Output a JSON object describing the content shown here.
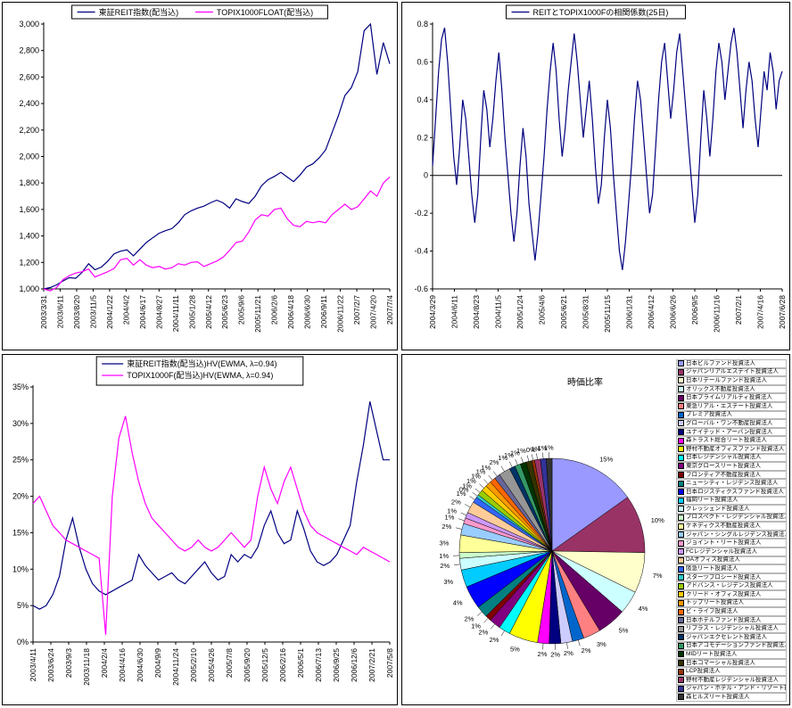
{
  "chart_data": [
    {
      "id": "price-index",
      "type": "line",
      "legend_layout": "row",
      "ylim": [
        1000,
        3000
      ],
      "yticks": {
        "min": 1000,
        "max": 3000,
        "step": 200,
        "labels": [
          "1,000",
          "1,200",
          "1,400",
          "1,600",
          "1,800",
          "2,000",
          "2,200",
          "2,400",
          "2,600",
          "2,800",
          "3,000"
        ]
      },
      "x_labels": [
        "2003/3/31",
        "2003/6/11",
        "2003/8/20",
        "2003/11/5",
        "2004/1/22",
        "2004/4/2",
        "2004/6/17",
        "2004/8/27",
        "2004/11/11",
        "2005/1/28",
        "2005/4/12",
        "2005/6/23",
        "2005/9/6",
        "2005/11/21",
        "2006/2/6",
        "2006/4/18",
        "2006/6/30",
        "2006/9/11",
        "2006/11/22",
        "2007/2/7",
        "2007/4/20",
        "2007/7/4"
      ],
      "series": [
        {
          "name": "東証REIT指数(配当込)",
          "color": "#000080",
          "values": [
            1000,
            1010,
            1030,
            1060,
            1085,
            1080,
            1125,
            1190,
            1145,
            1165,
            1210,
            1265,
            1285,
            1295,
            1250,
            1300,
            1350,
            1385,
            1420,
            1440,
            1455,
            1500,
            1560,
            1590,
            1610,
            1625,
            1650,
            1670,
            1650,
            1610,
            1680,
            1660,
            1645,
            1700,
            1780,
            1825,
            1850,
            1880,
            1845,
            1810,
            1860,
            1920,
            1945,
            1990,
            2050,
            2180,
            2310,
            2460,
            2520,
            2640,
            2950,
            3000,
            2620,
            2860,
            2700
          ]
        },
        {
          "name": "TOPIX1000FLOAT(配当込)",
          "color": "#FF00FF",
          "values": [
            1000,
            985,
            1010,
            1070,
            1100,
            1120,
            1130,
            1150,
            1090,
            1110,
            1130,
            1155,
            1220,
            1230,
            1180,
            1220,
            1180,
            1160,
            1170,
            1150,
            1160,
            1190,
            1180,
            1200,
            1205,
            1170,
            1190,
            1210,
            1240,
            1290,
            1350,
            1360,
            1430,
            1520,
            1560,
            1550,
            1600,
            1610,
            1530,
            1480,
            1470,
            1510,
            1500,
            1510,
            1500,
            1560,
            1600,
            1640,
            1600,
            1620,
            1680,
            1740,
            1700,
            1800,
            1845
          ]
        }
      ]
    },
    {
      "id": "correlation",
      "type": "line",
      "legend_layout": "row",
      "zero_line": true,
      "ylim": [
        -0.6,
        0.8
      ],
      "yticks": {
        "min": -0.6,
        "max": 0.8,
        "step": 0.2,
        "labels": [
          "-0.6",
          "-0.4",
          "-0.2",
          "0",
          "0.2",
          "0.4",
          "0.6",
          "0.8"
        ]
      },
      "x_labels": [
        "2004/3/29",
        "2004/6/11",
        "2004/8/23",
        "2004/11/5",
        "2005/1/24",
        "2005/4/6",
        "2005/6/21",
        "2005/8/31",
        "2005/11/15",
        "2006/1/31",
        "2006/4/12",
        "2006/6/26",
        "2006/9/5",
        "2006/11/16",
        "2007/2/1",
        "2007/4/16",
        "2007/6/28"
      ],
      "series": [
        {
          "name": "REITとTOPIX1000Fの相関係数(25日)",
          "color": "#000080",
          "values": [
            0.05,
            0.3,
            0.55,
            0.72,
            0.78,
            0.6,
            0.35,
            0.1,
            -0.05,
            0.15,
            0.4,
            0.3,
            0.1,
            -0.1,
            -0.25,
            -0.1,
            0.2,
            0.45,
            0.35,
            0.15,
            0.3,
            0.5,
            0.65,
            0.45,
            0.2,
            0,
            -0.2,
            -0.35,
            -0.2,
            0.05,
            0.25,
            0.1,
            -0.15,
            -0.3,
            -0.45,
            -0.3,
            -0.1,
            0.1,
            0.35,
            0.55,
            0.7,
            0.55,
            0.3,
            0.1,
            0.25,
            0.45,
            0.6,
            0.75,
            0.6,
            0.4,
            0.2,
            0.35,
            0.5,
            0.3,
            0.05,
            -0.15,
            -0.05,
            0.2,
            0.4,
            0.25,
            0,
            -0.2,
            -0.4,
            -0.5,
            -0.35,
            -0.15,
            0.05,
            0.3,
            0.5,
            0.4,
            0.2,
            0,
            -0.2,
            -0.1,
            0.15,
            0.4,
            0.6,
            0.7,
            0.5,
            0.3,
            0.45,
            0.65,
            0.75,
            0.55,
            0.35,
            0.15,
            -0.05,
            -0.25,
            -0.1,
            0.2,
            0.45,
            0.3,
            0.1,
            0.3,
            0.55,
            0.7,
            0.6,
            0.4,
            0.55,
            0.7,
            0.78,
            0.65,
            0.45,
            0.25,
            0.45,
            0.6,
            0.5,
            0.3,
            0.15,
            0.35,
            0.55,
            0.45,
            0.65,
            0.55,
            0.35,
            0.5,
            0.55
          ]
        }
      ]
    },
    {
      "id": "historical-volatility",
      "type": "line",
      "legend_layout": "column",
      "ylim": [
        0,
        35
      ],
      "yticks": {
        "min": 0,
        "max": 35,
        "step": 5,
        "labels": [
          "0%",
          "5%",
          "10%",
          "15%",
          "20%",
          "25%",
          "30%",
          "35%"
        ]
      },
      "x_labels": [
        "2003/4/11",
        "2003/6/24",
        "2003/9/3",
        "2003/11/18",
        "2004/2/4",
        "2004/4/16",
        "2004/6/30",
        "2004/9/9",
        "2004/11/24",
        "2005/2/10",
        "2005/4/26",
        "2005/7/8",
        "2005/9/20",
        "2005/12/5",
        "2006/2/16",
        "2006/5/1",
        "2006/7/13",
        "2006/9/25",
        "2006/12/6",
        "2007/2/21",
        "2007/5/8"
      ],
      "series": [
        {
          "name": "東証REIT指数(配当込)HV(EWMA, λ=0.94)",
          "color": "#000080",
          "values": [
            5,
            4.5,
            5,
            6.5,
            9,
            14,
            17,
            13,
            10,
            8,
            7,
            6.5,
            7,
            7.5,
            8,
            8.5,
            12,
            10.5,
            9.5,
            8.5,
            9,
            9.5,
            8.5,
            8,
            9,
            10,
            11,
            9.5,
            8.5,
            9,
            12,
            11,
            12,
            11.5,
            13,
            16,
            18,
            15,
            13.5,
            14,
            18,
            15.5,
            12.5,
            11,
            10.5,
            11,
            12,
            14,
            16,
            22,
            27,
            33,
            29,
            25,
            25
          ]
        },
        {
          "name": "TOPIX1000F(配当込)HV(EWMA, λ=0.94)",
          "color": "#FF00FF",
          "values": [
            19,
            20,
            18,
            16,
            15,
            14,
            13.5,
            13,
            12.5,
            12,
            11.5,
            1,
            20,
            28,
            31,
            26,
            22,
            19,
            17,
            16,
            15,
            14,
            13,
            12.5,
            13,
            14,
            13,
            12.5,
            13,
            14,
            15,
            14,
            13,
            14,
            20,
            24,
            21,
            19,
            22,
            24,
            21,
            18,
            16,
            15,
            14.5,
            14,
            13.5,
            13,
            12.5,
            12,
            13,
            12.5,
            12,
            11.5,
            11
          ]
        }
      ]
    },
    {
      "id": "market-cap-share",
      "type": "pie",
      "title": "時価比率",
      "slices": [
        {
          "name": "日本ビルファンド投資法人",
          "value": 15,
          "label": "15%",
          "color": "#9999FF"
        },
        {
          "name": "ジャパンリアルエステイト投資法人",
          "value": 10,
          "label": "10%",
          "color": "#993366"
        },
        {
          "name": "日本リテールファンド投資法人",
          "value": 7,
          "label": "7%",
          "color": "#FFFFCC"
        },
        {
          "name": "オリックス不動産投資法人",
          "value": 4,
          "label": "4%",
          "color": "#CCFFFF"
        },
        {
          "name": "日本プライムリアルティ投資法人",
          "value": 5,
          "label": "5%",
          "color": "#660066"
        },
        {
          "name": "東急リアル・エステート投資法人",
          "value": 3,
          "label": "3%",
          "color": "#FF8080"
        },
        {
          "name": "プレミア投資法人",
          "value": 2,
          "label": "2%",
          "color": "#0066CC"
        },
        {
          "name": "グローバル・ワン不動産投資法人",
          "value": 2,
          "label": "2%",
          "color": "#CCCCFF"
        },
        {
          "name": "ユナイテッド・アーバン投資法人",
          "value": 2,
          "label": "2%",
          "color": "#000080"
        },
        {
          "name": "森トラスト総合リート投資法人",
          "value": 2,
          "label": "2%",
          "color": "#FF00FF"
        },
        {
          "name": "野村不動産オフィスファンド投資法人",
          "value": 5,
          "label": "5%",
          "color": "#FFFF00"
        },
        {
          "name": "日本レジデンシャル投資法人",
          "value": 2,
          "label": "2%",
          "color": "#00FFFF"
        },
        {
          "name": "東京グロースリート投資法人",
          "value": 2,
          "label": "2%",
          "color": "#800080"
        },
        {
          "name": "フロンティア不動産投資法人",
          "value": 1,
          "label": "1%",
          "color": "#800000"
        },
        {
          "name": "ニューシティ・レジデンス投資法人",
          "value": 2,
          "label": "2%",
          "color": "#008080"
        },
        {
          "name": "日本ロジスティクスファンド投資法人",
          "value": 4,
          "label": "4%",
          "color": "#0000FF"
        },
        {
          "name": "福岡リート投資法人",
          "value": 3,
          "label": "3%",
          "color": "#00CCFF"
        },
        {
          "name": "クレッシェンド投資法人",
          "value": 2,
          "label": "2%",
          "color": "#CCFFFF"
        },
        {
          "name": "プロスペクト・レジデンシャル投資法人",
          "value": 1,
          "label": "1%",
          "color": "#CCFFCC"
        },
        {
          "name": "ケネディクス不動産投資法人",
          "value": 3,
          "label": "3%",
          "color": "#FFFF99"
        },
        {
          "name": "ジャパン・シングルレジデンス投資法人",
          "value": 2,
          "label": "2%",
          "color": "#99CCFF"
        },
        {
          "name": "ジョイント・リート投資法人",
          "value": 1,
          "label": "1%",
          "color": "#FF99CC"
        },
        {
          "name": "FCレジデンシャル投資法人",
          "value": 1,
          "label": "1%",
          "color": "#CC99FF"
        },
        {
          "name": "DAオフィス投資法人",
          "value": 2,
          "label": "2%",
          "color": "#FFCC99"
        },
        {
          "name": "阪急リート投資法人",
          "value": 1,
          "label": "1%",
          "color": "#3366FF"
        },
        {
          "name": "スターツプロシード投資法人",
          "value": 0.5,
          "label": "0%",
          "color": "#33CCCC"
        },
        {
          "name": "アドバンス・レジデンス投資法人",
          "value": 1,
          "label": "1%",
          "color": "#99CC00"
        },
        {
          "name": "クリード・オフィス投資法人",
          "value": 1,
          "label": "1%",
          "color": "#FFCC00"
        },
        {
          "name": "トップリート投資法人",
          "value": 1,
          "label": "1%",
          "color": "#FF9900"
        },
        {
          "name": "ビ・ライフ投資法人",
          "value": 1,
          "label": "1%",
          "color": "#FF6600"
        },
        {
          "name": "日本ホテルファンド投資法人",
          "value": 1,
          "label": "1%",
          "color": "#666699"
        },
        {
          "name": "リプラス・レジデンシャル投資法人",
          "value": 2,
          "label": "2%",
          "color": "#969696"
        },
        {
          "name": "ジャパンエクセレント投資法人",
          "value": 1,
          "label": "1%",
          "color": "#003366"
        },
        {
          "name": "日本アコモデーションファンド投資法人",
          "value": 1,
          "label": "1%",
          "color": "#339966"
        },
        {
          "name": "MIDリート投資法人",
          "value": 1,
          "label": "1%",
          "color": "#003300"
        },
        {
          "name": "日本コマーシャル投資法人",
          "value": 1,
          "label": "1%",
          "color": "#333300"
        },
        {
          "name": "LCP投資法人",
          "value": 0.5,
          "label": "0%",
          "color": "#993300"
        },
        {
          "name": "野村不動産レジデンシャル投資法人",
          "value": 1,
          "label": "1%",
          "color": "#993366"
        },
        {
          "name": "ジャパン・ホテル・アンド・リゾート投資法人",
          "value": 1,
          "label": "1%",
          "color": "#333399"
        },
        {
          "name": "森ヒルズリート投資法人",
          "value": 1,
          "label": "1%",
          "color": "#333333"
        }
      ]
    }
  ]
}
